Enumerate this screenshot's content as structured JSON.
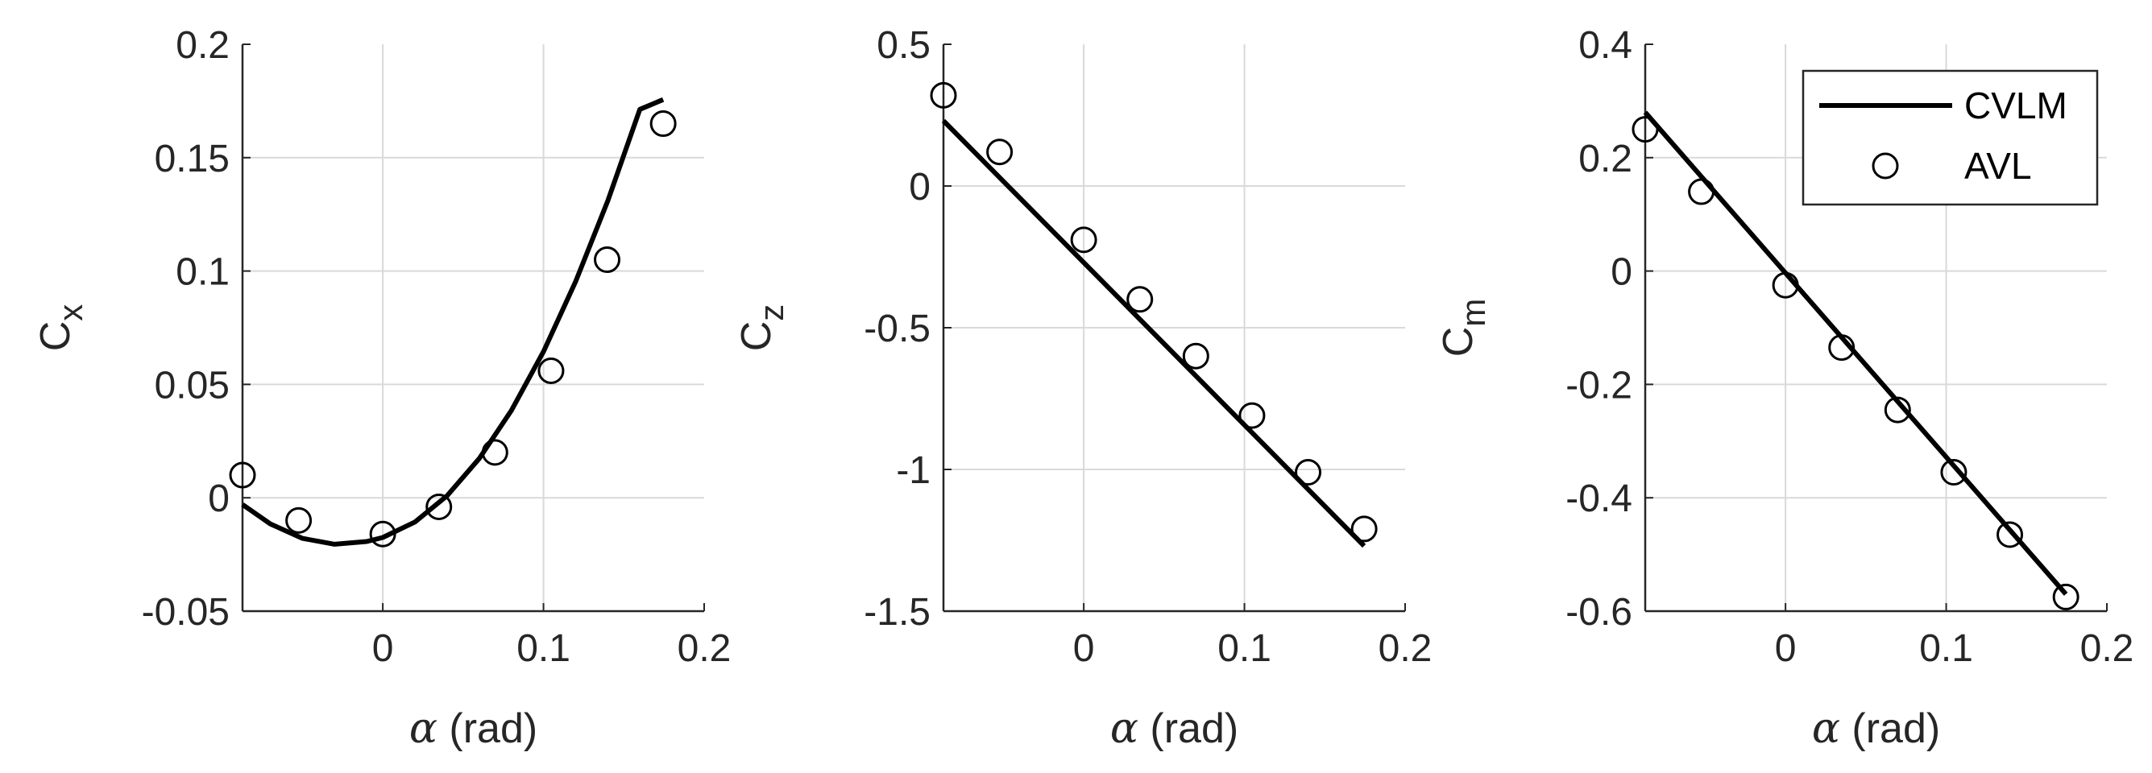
{
  "figure": {
    "legend": {
      "position": "top-right of third panel",
      "entries": [
        {
          "label": "CVLM",
          "style": "line"
        },
        {
          "label": "AVL",
          "style": "circle"
        }
      ]
    },
    "colors": {
      "line": "#000000",
      "marker": "#000000",
      "grid": "#d9d9d9",
      "axis": "#262626"
    }
  },
  "chart_data": [
    {
      "type": "line",
      "ylabel_main": "C",
      "ylabel_sub": "x",
      "xlabel_symbol": "α",
      "xlabel_rest": " (rad)",
      "xlim": [
        -0.0873,
        0.2
      ],
      "ylim": [
        -0.05,
        0.2
      ],
      "xticks": [
        0,
        0.1,
        0.2
      ],
      "xtick_labels": [
        "0",
        "0.1",
        "0.2"
      ],
      "yticks": [
        -0.05,
        0,
        0.05,
        0.1,
        0.15,
        0.2
      ],
      "ytick_labels": [
        "-0.05",
        "0",
        "0.05",
        "0.1",
        "0.15",
        "0.2"
      ],
      "grid": true,
      "series": [
        {
          "name": "CVLM",
          "style": "line",
          "x": [
            -0.0873,
            -0.07,
            -0.05,
            -0.03,
            -0.01,
            0,
            0.02,
            0.04,
            0.06,
            0.08,
            0.1,
            0.12,
            0.14,
            0.16,
            0.1745
          ],
          "y": [
            -0.003,
            -0.0115,
            -0.0179,
            -0.0205,
            -0.0193,
            -0.0175,
            -0.0107,
            0.0009,
            0.0173,
            0.0385,
            0.0645,
            0.0953,
            0.1309,
            0.1713,
            0.1756
          ]
        },
        {
          "name": "AVL",
          "style": "circle",
          "x": [
            -0.0873,
            -0.0524,
            0,
            0.0349,
            0.0698,
            0.1047,
            0.1396,
            0.1745
          ],
          "y": [
            0.01,
            -0.01,
            -0.016,
            -0.004,
            0.02,
            0.056,
            0.105,
            0.165
          ]
        }
      ]
    },
    {
      "type": "line",
      "ylabel_main": "C",
      "ylabel_sub": "z",
      "xlabel_symbol": "α",
      "xlabel_rest": " (rad)",
      "xlim": [
        -0.0873,
        0.2
      ],
      "ylim": [
        -1.5,
        0.5
      ],
      "xticks": [
        0,
        0.1,
        0.2
      ],
      "xtick_labels": [
        "0",
        "0.1",
        "0.2"
      ],
      "yticks": [
        -1.5,
        -1,
        -0.5,
        0,
        0.5
      ],
      "ytick_labels": [
        "-1.5",
        "-1",
        "-0.5",
        "0",
        "0.5"
      ],
      "grid": true,
      "series": [
        {
          "name": "CVLM",
          "style": "line",
          "x": [
            -0.0873,
            0.1745
          ],
          "y": [
            0.23,
            -1.27
          ]
        },
        {
          "name": "AVL",
          "style": "circle",
          "x": [
            -0.0873,
            -0.0524,
            0,
            0.0349,
            0.0698,
            0.1047,
            0.1396,
            0.1745
          ],
          "y": [
            0.32,
            0.12,
            -0.19,
            -0.4,
            -0.6,
            -0.81,
            -1.01,
            -1.21
          ]
        }
      ]
    },
    {
      "type": "line",
      "ylabel_main": "C",
      "ylabel_sub": "m",
      "xlabel_symbol": "α",
      "xlabel_rest": " (rad)",
      "xlim": [
        -0.0873,
        0.2
      ],
      "ylim": [
        -0.6,
        0.4
      ],
      "xticks": [
        0,
        0.1,
        0.2
      ],
      "xtick_labels": [
        "0",
        "0.1",
        "0.2"
      ],
      "yticks": [
        -0.6,
        -0.4,
        -0.2,
        0,
        0.2,
        0.4
      ],
      "ytick_labels": [
        "-0.6",
        "-0.4",
        "-0.2",
        "0",
        "0.2",
        "0.4"
      ],
      "grid": true,
      "series": [
        {
          "name": "CVLM",
          "style": "line",
          "x": [
            -0.0873,
            0.1745
          ],
          "y": [
            0.28,
            -0.57
          ]
        },
        {
          "name": "AVL",
          "style": "circle",
          "x": [
            -0.0873,
            -0.0524,
            0,
            0.0349,
            0.0698,
            0.1047,
            0.1396,
            0.1745
          ],
          "y": [
            0.25,
            0.14,
            -0.025,
            -0.135,
            -0.245,
            -0.355,
            -0.465,
            -0.575
          ]
        }
      ]
    }
  ]
}
